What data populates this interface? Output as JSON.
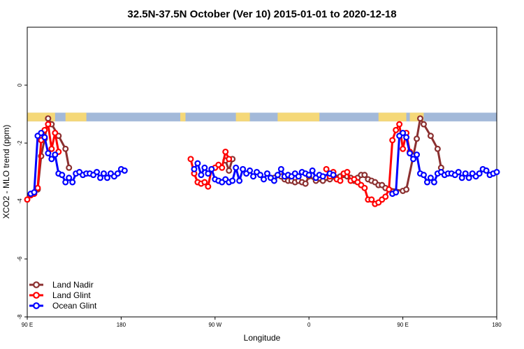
{
  "chart_data": {
    "type": "line",
    "title": "32.5N-37.5N October (Ver 10)   2015-01-01 to 2020-12-18",
    "xlabel": "Longitude",
    "ylabel": "XCO2 - MLO trend (ppm)",
    "xlim": [
      -90,
      180
    ],
    "ylim": [
      -8,
      2
    ],
    "x_ticks": [
      {
        "value": -90,
        "label": "90 E"
      },
      {
        "value": -36,
        "label": "180"
      },
      {
        "value": 18,
        "label": "90 W"
      },
      {
        "value": 72,
        "label": "0"
      },
      {
        "value": 126,
        "label": "90 E"
      },
      {
        "value": 180,
        "label": "180"
      }
    ],
    "y_ticks": [
      {
        "value": 0,
        "label": "0"
      },
      {
        "value": -2,
        "label": "-2"
      },
      {
        "value": -4,
        "label": "-4"
      },
      {
        "value": -6,
        "label": "-6"
      },
      {
        "value": -8,
        "label": "-8"
      }
    ],
    "surface_band": {
      "ymin": -1.25,
      "ymax": -0.95,
      "land_color": "#f5d878",
      "ocean_color": "#a3b9d9"
    },
    "legend_position": "bottom-left",
    "series": [
      {
        "name": "Land Nadir",
        "color": "#8b3030",
        "points": [
          [
            -84,
            -3.6
          ],
          [
            -82,
            -2.45
          ],
          [
            -80,
            -1.85
          ],
          [
            -78,
            -1.15
          ],
          [
            -76,
            -1.35
          ],
          [
            -72,
            -1.75
          ],
          [
            -68,
            -2.2
          ],
          [
            -66,
            -2.85
          ],
          [
            24,
            -2.6
          ],
          [
            26,
            -2.95
          ],
          [
            28,
            -2.55
          ],
          [
            52,
            -3.2
          ],
          [
            56,
            -3.15
          ],
          [
            58,
            -3.25
          ],
          [
            60,
            -3.3
          ],
          [
            62,
            -3.3
          ],
          [
            64,
            -3.35
          ],
          [
            66,
            -3.3
          ],
          [
            68,
            -3.35
          ],
          [
            70,
            -3.4
          ],
          [
            72,
            -3.15
          ],
          [
            76,
            -3.3
          ],
          [
            80,
            -3.3
          ],
          [
            84,
            -3.25
          ],
          [
            88,
            -3.2
          ],
          [
            90,
            -3.15
          ],
          [
            92,
            -3.1
          ],
          [
            94,
            -3.15
          ],
          [
            96,
            -3.2
          ],
          [
            98,
            -3.3
          ],
          [
            100,
            -3.2
          ],
          [
            102,
            -3.1
          ],
          [
            104,
            -3.1
          ],
          [
            106,
            -3.25
          ],
          [
            108,
            -3.3
          ],
          [
            110,
            -3.35
          ],
          [
            112,
            -3.45
          ],
          [
            114,
            -3.45
          ],
          [
            116,
            -3.55
          ],
          [
            126,
            -3.65
          ],
          [
            128,
            -3.6
          ],
          [
            132,
            -2.45
          ],
          [
            134,
            -1.85
          ],
          [
            136,
            -1.15
          ],
          [
            138,
            -1.35
          ],
          [
            142,
            -1.75
          ],
          [
            146,
            -2.2
          ],
          [
            148,
            -2.85
          ]
        ]
      },
      {
        "name": "Land Glint",
        "color": "#ff0000",
        "points": [
          [
            -90,
            -3.95
          ],
          [
            -88,
            -3.8
          ],
          [
            -86,
            -3.75
          ],
          [
            -84,
            -3.55
          ],
          [
            -82,
            -1.9
          ],
          [
            -80,
            -1.55
          ],
          [
            -78,
            -1.35
          ],
          [
            -76,
            -2.2
          ],
          [
            -74,
            -1.65
          ],
          [
            -72,
            -2.3
          ],
          [
            4,
            -2.55
          ],
          [
            6,
            -3.05
          ],
          [
            8,
            -3.35
          ],
          [
            10,
            -3.4
          ],
          [
            12,
            -3.35
          ],
          [
            14,
            -3.5
          ],
          [
            16,
            -2.9
          ],
          [
            18,
            -2.85
          ],
          [
            20,
            -2.75
          ],
          [
            22,
            -2.85
          ],
          [
            24,
            -2.3
          ],
          [
            26,
            -2.55
          ],
          [
            82,
            -2.9
          ],
          [
            84,
            -3.15
          ],
          [
            86,
            -3.0
          ],
          [
            88,
            -3.25
          ],
          [
            90,
            -3.3
          ],
          [
            92,
            -3.05
          ],
          [
            94,
            -3.0
          ],
          [
            96,
            -3.3
          ],
          [
            98,
            -3.25
          ],
          [
            100,
            -3.35
          ],
          [
            102,
            -3.45
          ],
          [
            104,
            -3.55
          ],
          [
            106,
            -3.95
          ],
          [
            108,
            -3.95
          ],
          [
            110,
            -4.1
          ],
          [
            112,
            -4.05
          ],
          [
            114,
            -3.95
          ],
          [
            116,
            -3.85
          ],
          [
            118,
            -3.6
          ],
          [
            120,
            -1.9
          ],
          [
            122,
            -1.55
          ],
          [
            124,
            -1.35
          ],
          [
            126,
            -2.2
          ],
          [
            128,
            -1.65
          ],
          [
            130,
            -2.3
          ]
        ]
      },
      {
        "name": "Ocean Glint",
        "color": "#0000ff",
        "points": [
          [
            -88,
            -3.75
          ],
          [
            -86,
            -3.7
          ],
          [
            -84,
            -1.75
          ],
          [
            -82,
            -1.65
          ],
          [
            -80,
            -1.8
          ],
          [
            -78,
            -2.35
          ],
          [
            -76,
            -2.55
          ],
          [
            -74,
            -2.4
          ],
          [
            -72,
            -3.05
          ],
          [
            -70,
            -3.1
          ],
          [
            -68,
            -3.35
          ],
          [
            -66,
            -3.2
          ],
          [
            -64,
            -3.35
          ],
          [
            -62,
            -3.05
          ],
          [
            -60,
            -3.0
          ],
          [
            -58,
            -3.1
          ],
          [
            -56,
            -3.05
          ],
          [
            -54,
            -3.05
          ],
          [
            -52,
            -3.1
          ],
          [
            -50,
            -3.0
          ],
          [
            -48,
            -3.2
          ],
          [
            -46,
            -3.05
          ],
          [
            -44,
            -3.2
          ],
          [
            -42,
            -3.05
          ],
          [
            -40,
            -3.15
          ],
          [
            -38,
            -3.05
          ],
          [
            -36,
            -2.9
          ],
          [
            -34,
            -2.95
          ],
          [
            6,
            -2.9
          ],
          [
            8,
            -2.7
          ],
          [
            10,
            -3.1
          ],
          [
            12,
            -2.85
          ],
          [
            14,
            -3.05
          ],
          [
            16,
            -2.9
          ],
          [
            18,
            -3.25
          ],
          [
            20,
            -3.3
          ],
          [
            22,
            -3.35
          ],
          [
            24,
            -3.25
          ],
          [
            26,
            -3.35
          ],
          [
            28,
            -3.3
          ],
          [
            30,
            -2.85
          ],
          [
            32,
            -3.3
          ],
          [
            34,
            -2.9
          ],
          [
            36,
            -3.05
          ],
          [
            38,
            -2.95
          ],
          [
            40,
            -3.15
          ],
          [
            42,
            -3.0
          ],
          [
            44,
            -3.1
          ],
          [
            46,
            -3.25
          ],
          [
            48,
            -3.05
          ],
          [
            50,
            -3.2
          ],
          [
            52,
            -3.3
          ],
          [
            54,
            -3.1
          ],
          [
            56,
            -2.9
          ],
          [
            58,
            -3.15
          ],
          [
            60,
            -3.1
          ],
          [
            62,
            -3.15
          ],
          [
            64,
            -3.05
          ],
          [
            66,
            -3.15
          ],
          [
            68,
            -3.0
          ],
          [
            70,
            -3.05
          ],
          [
            72,
            -3.1
          ],
          [
            74,
            -2.95
          ],
          [
            76,
            -3.2
          ],
          [
            78,
            -3.1
          ],
          [
            80,
            -3.15
          ],
          [
            84,
            -3.05
          ],
          [
            86,
            -3.1
          ],
          [
            120,
            -3.75
          ],
          [
            122,
            -3.7
          ],
          [
            124,
            -1.75
          ],
          [
            126,
            -1.65
          ],
          [
            128,
            -1.8
          ],
          [
            130,
            -2.35
          ],
          [
            132,
            -2.55
          ],
          [
            134,
            -2.4
          ],
          [
            136,
            -3.05
          ],
          [
            138,
            -3.1
          ],
          [
            140,
            -3.35
          ],
          [
            142,
            -3.2
          ],
          [
            144,
            -3.35
          ],
          [
            146,
            -3.05
          ],
          [
            148,
            -3.0
          ],
          [
            150,
            -3.1
          ],
          [
            152,
            -3.05
          ],
          [
            154,
            -3.05
          ],
          [
            156,
            -3.1
          ],
          [
            158,
            -3.0
          ],
          [
            160,
            -3.2
          ],
          [
            162,
            -3.05
          ],
          [
            164,
            -3.2
          ],
          [
            166,
            -3.05
          ],
          [
            168,
            -3.15
          ],
          [
            170,
            -3.05
          ],
          [
            172,
            -2.9
          ],
          [
            174,
            -2.95
          ],
          [
            176,
            -3.1
          ],
          [
            178,
            -3.05
          ],
          [
            180,
            -3.0
          ]
        ]
      }
    ]
  }
}
